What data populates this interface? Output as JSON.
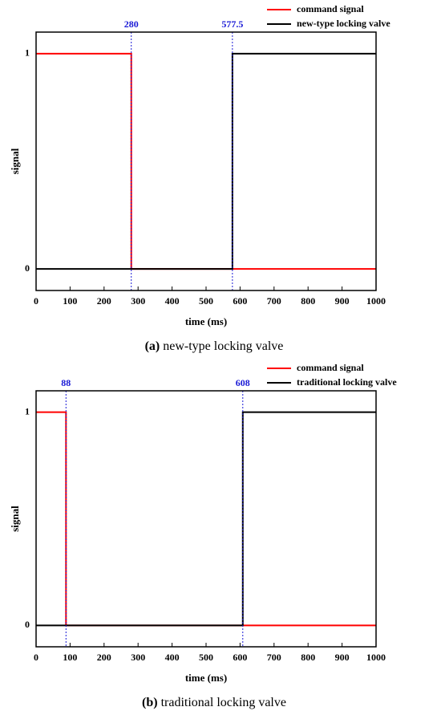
{
  "chart_data": [
    {
      "type": "line",
      "caption_label": "(a)",
      "caption": "new-type locking valve",
      "xlabel": "time (ms)",
      "ylabel": "signal",
      "xlim": [
        0,
        1000
      ],
      "xticks": [
        0,
        100,
        200,
        300,
        400,
        500,
        600,
        700,
        800,
        900,
        1000
      ],
      "ylim": [
        -0.1,
        1.1
      ],
      "yticks": [
        0,
        1
      ],
      "legend": "upper right",
      "vlines": [
        280,
        577.5
      ],
      "vline_color": "#1a1ad6",
      "series": [
        {
          "name": "command signal",
          "color": "#ff0000",
          "x": [
            0,
            280,
            280,
            1000
          ],
          "values": [
            1,
            1,
            0,
            0
          ]
        },
        {
          "name": "new-type locking valve",
          "color": "#000000",
          "x": [
            0,
            577.5,
            577.5,
            1000
          ],
          "values": [
            0,
            0,
            1,
            1
          ]
        }
      ]
    },
    {
      "type": "line",
      "caption_label": "(b)",
      "caption": "traditional locking valve",
      "xlabel": "time (ms)",
      "ylabel": "signal",
      "xlim": [
        0,
        1000
      ],
      "xticks": [
        0,
        100,
        200,
        300,
        400,
        500,
        600,
        700,
        800,
        900,
        1000
      ],
      "ylim": [
        -0.1,
        1.1
      ],
      "yticks": [
        0,
        1
      ],
      "legend": "upper right",
      "vlines": [
        88,
        608
      ],
      "vline_color": "#1a1ad6",
      "series": [
        {
          "name": "command signal",
          "color": "#ff0000",
          "x": [
            0,
            88,
            88,
            1000
          ],
          "values": [
            1,
            1,
            0,
            0
          ]
        },
        {
          "name": "traditional locking valve",
          "color": "#000000",
          "x": [
            0,
            608,
            608,
            1000
          ],
          "values": [
            0,
            0,
            1,
            1
          ]
        }
      ]
    }
  ]
}
